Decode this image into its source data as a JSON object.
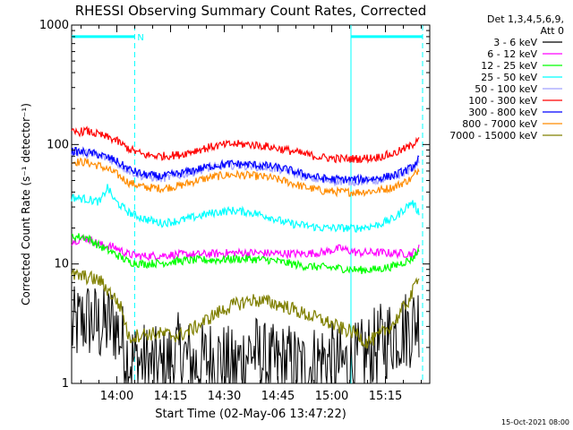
{
  "chart_data": {
    "type": "line",
    "title": "RHESSI Observing Summary Count Rates, Corrected",
    "xlabel": "Start Time (02-May-06 13:47:22)",
    "ylabel": "Corrected Count Rate (s⁻¹ detector⁻¹)",
    "yscale": "log",
    "ylim": [
      1,
      1000
    ],
    "y_ticks": [
      {
        "value": 1,
        "label": "1"
      },
      {
        "value": 10,
        "label": "10"
      },
      {
        "value": 100,
        "label": "100"
      },
      {
        "value": 1000,
        "label": "1000"
      }
    ],
    "x_unit": "minutes since 13:47:22",
    "xlim": [
      0,
      100
    ],
    "x_ticks": [
      {
        "value": 12.63,
        "label": "14:00"
      },
      {
        "value": 27.63,
        "label": "14:15"
      },
      {
        "value": 42.63,
        "label": "14:30"
      },
      {
        "value": 57.63,
        "label": "14:45"
      },
      {
        "value": 72.63,
        "label": "15:00"
      },
      {
        "value": 87.63,
        "label": "15:15"
      }
    ],
    "legend_header": [
      "Det 1,3,4,5,6,9,",
      "Att 0"
    ],
    "legend_position": "top-right",
    "series": [
      {
        "name": "3 - 6 keV",
        "color": "#000000",
        "x": [
          0,
          4,
          8,
          12,
          16,
          20,
          25,
          30,
          35,
          40,
          45,
          50,
          55,
          60,
          65,
          70,
          75,
          80,
          85,
          90,
          95,
          97
        ],
        "values": [
          2.8,
          3.5,
          3.0,
          3.2,
          1.6,
          1.5,
          1.3,
          1.8,
          1.4,
          1.7,
          1.3,
          1.9,
          1.4,
          1.5,
          1.3,
          1.6,
          1.4,
          1.5,
          2.0,
          2.6,
          3.0,
          3.6
        ]
      },
      {
        "name": "6 - 12 keV",
        "color": "#ff00ff",
        "x": [
          0,
          4,
          8,
          12,
          16,
          20,
          25,
          30,
          35,
          40,
          45,
          50,
          55,
          60,
          65,
          70,
          75,
          80,
          85,
          90,
          95,
          97
        ],
        "values": [
          15.5,
          16.5,
          14.5,
          13.8,
          12.0,
          11.6,
          11.8,
          12.0,
          12.0,
          12.2,
          12.4,
          12.4,
          12.3,
          12.2,
          12.2,
          12.5,
          13.5,
          12.4,
          12.5,
          12.3,
          12.2,
          13.5
        ]
      },
      {
        "name": "12 - 25 keV",
        "color": "#00ff00",
        "x": [
          0,
          4,
          8,
          12,
          16,
          20,
          25,
          30,
          35,
          40,
          45,
          50,
          55,
          60,
          65,
          70,
          75,
          80,
          85,
          90,
          95,
          97
        ],
        "values": [
          17.0,
          16.8,
          14.0,
          12.2,
          10.4,
          10.0,
          10.2,
          10.6,
          10.8,
          10.8,
          11.0,
          11.0,
          10.8,
          10.2,
          9.6,
          9.4,
          9.2,
          8.9,
          9.0,
          9.6,
          11.0,
          13.0
        ]
      },
      {
        "name": "25 - 50 keV",
        "color": "#00ffff",
        "x": [
          0,
          4,
          8,
          10,
          12,
          16,
          20,
          25,
          30,
          35,
          40,
          45,
          50,
          55,
          60,
          65,
          70,
          75,
          80,
          85,
          90,
          95,
          97
        ],
        "values": [
          36,
          35,
          33,
          44,
          34,
          27,
          24,
          22,
          23,
          25,
          27,
          28,
          27,
          25,
          22,
          21,
          20,
          20,
          20,
          21,
          24,
          33,
          27
        ]
      },
      {
        "name": "50 - 100 keV",
        "color": "#a0a0ff",
        "x": [
          0,
          4,
          8,
          12,
          16,
          20,
          25,
          30,
          35,
          40,
          45,
          50,
          55,
          60,
          65,
          70,
          75,
          80,
          85,
          90,
          95,
          97
        ],
        "values": [
          86,
          84,
          80,
          72,
          60,
          54,
          52,
          55,
          60,
          65,
          67,
          66,
          64,
          60,
          54,
          50,
          49,
          49,
          50,
          53,
          62,
          74
        ]
      },
      {
        "name": "100 - 300 keV",
        "color": "#ff0000",
        "x": [
          0,
          4,
          8,
          12,
          16,
          20,
          25,
          30,
          35,
          40,
          45,
          50,
          55,
          60,
          65,
          70,
          75,
          80,
          85,
          90,
          95,
          97
        ],
        "values": [
          125,
          130,
          120,
          110,
          92,
          82,
          80,
          82,
          90,
          97,
          101,
          100,
          96,
          90,
          83,
          78,
          76,
          76,
          78,
          84,
          98,
          118
        ]
      },
      {
        "name": "300 - 800 keV",
        "color": "#0000ff",
        "x": [
          0,
          4,
          8,
          12,
          16,
          20,
          25,
          30,
          35,
          40,
          45,
          50,
          55,
          60,
          65,
          70,
          75,
          80,
          85,
          90,
          95,
          97
        ],
        "values": [
          88,
          86,
          82,
          74,
          62,
          56,
          54,
          57,
          62,
          67,
          69,
          68,
          66,
          62,
          56,
          52,
          51,
          51,
          52,
          55,
          64,
          76
        ]
      },
      {
        "name": "800 - 7000 keV",
        "color": "#ff8c00",
        "x": [
          0,
          4,
          8,
          12,
          16,
          20,
          25,
          30,
          35,
          40,
          45,
          50,
          55,
          60,
          65,
          70,
          75,
          80,
          85,
          90,
          95,
          97
        ],
        "values": [
          72,
          71,
          66,
          58,
          48,
          44,
          43,
          45,
          50,
          54,
          56,
          55,
          53,
          49,
          44,
          41,
          40,
          40,
          41,
          44,
          52,
          63
        ]
      },
      {
        "name": "7000 - 15000 keV",
        "color": "#808000",
        "x": [
          0,
          4,
          8,
          12,
          14,
          16,
          20,
          25,
          30,
          35,
          40,
          45,
          50,
          55,
          60,
          65,
          70,
          75,
          80,
          82,
          85,
          90,
          95,
          97
        ],
        "values": [
          8.0,
          7.8,
          7.2,
          5.2,
          4.2,
          2.4,
          2.6,
          2.6,
          2.5,
          3.0,
          3.8,
          4.5,
          5.0,
          4.8,
          4.4,
          3.8,
          3.4,
          2.9,
          2.6,
          2.2,
          2.4,
          3.2,
          5.5,
          8.5
        ]
      }
    ],
    "annotations": [
      {
        "type": "vertical-line",
        "x": 17.6,
        "color": "#00ffff",
        "style": "dashed"
      },
      {
        "type": "vertical-line",
        "x": 78.0,
        "color": "#00ffff",
        "style": "solid"
      },
      {
        "type": "vertical-line",
        "x": 98.0,
        "color": "#00ffff",
        "style": "dashed"
      },
      {
        "type": "bar",
        "x_start": 0,
        "x_end": 17.6,
        "y": 800,
        "color": "#00ffff",
        "label": "N"
      },
      {
        "type": "bar",
        "x_start": 78.0,
        "x_end": 98.0,
        "y": 800,
        "color": "#00ffff"
      }
    ],
    "footer": "15-Oct-2021 08:00"
  }
}
